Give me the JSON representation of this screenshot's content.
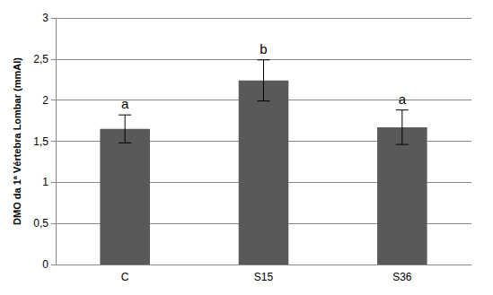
{
  "chart_data": {
    "type": "bar",
    "y_label": "DMO da 1ª Vértebra Lombar (mmAl)",
    "categories": [
      "C",
      "S15",
      "S36"
    ],
    "values": [
      1.65,
      2.24,
      1.67
    ],
    "errors": [
      0.17,
      0.25,
      0.21
    ],
    "annotations": [
      "a",
      "b",
      "a"
    ],
    "color": "#595959",
    "ylim": [
      0,
      3
    ],
    "yticks": [
      0,
      {
        "value": 0.5,
        "label": "0,5"
      },
      1,
      {
        "value": 1.5,
        "label": "1,5"
      },
      2,
      {
        "value": 2.5,
        "label": "2,5"
      },
      3
    ],
    "grid": true
  }
}
